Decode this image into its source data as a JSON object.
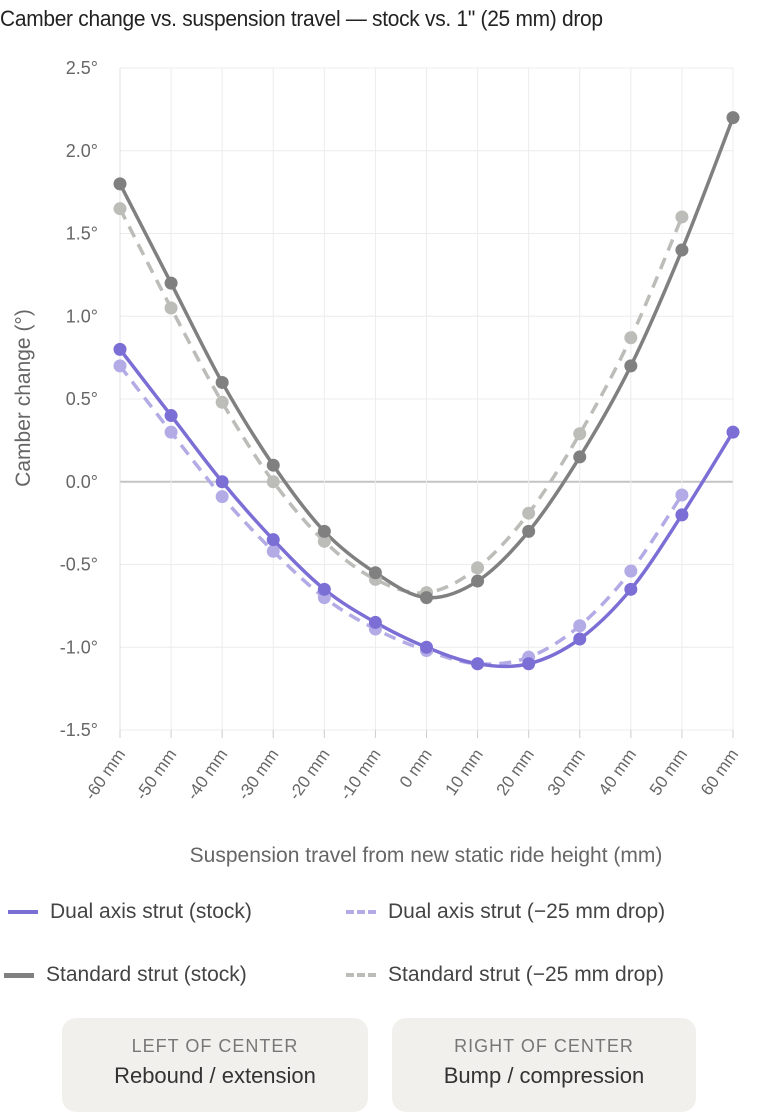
{
  "chart_data": {
    "type": "line",
    "title": "Camber change vs. suspension travel — stock vs. 1\" (25 mm) drop",
    "xlabel": "Suspension travel from new static ride height (mm)",
    "ylabel": "Camber change (°)",
    "categories": [
      "-60 mm",
      "-50 mm",
      "-40 mm",
      "-30 mm",
      "-20 mm",
      "-10 mm",
      "0 mm",
      "10 mm",
      "20 mm",
      "30 mm",
      "40 mm",
      "50 mm",
      "60 mm"
    ],
    "x": [
      -60,
      -50,
      -40,
      -30,
      -20,
      -10,
      0,
      10,
      20,
      30,
      40,
      50,
      60
    ],
    "ylim": [
      -1.5,
      2.5
    ],
    "yticks": [
      "2.5°",
      "2.0°",
      "1.5°",
      "1.0°",
      "0.5°",
      "0.0°",
      "-0.5°",
      "-1.0°",
      "-1.5°"
    ],
    "ytick_values": [
      2.5,
      2.0,
      1.5,
      1.0,
      0.5,
      0.0,
      -0.5,
      -1.0,
      -1.5
    ],
    "grid": true,
    "series": [
      {
        "name": "Dual axis strut (stock)",
        "color": "#7b6fd6",
        "dash": false,
        "values": [
          0.8,
          0.4,
          0.0,
          -0.35,
          -0.65,
          -0.85,
          -1.0,
          -1.1,
          -1.1,
          -0.95,
          -0.65,
          -0.2,
          0.3
        ]
      },
      {
        "name": "Dual axis strut (−25 mm drop)",
        "color": "#b3abe6",
        "dash": true,
        "values": [
          0.7,
          0.3,
          -0.09,
          -0.42,
          -0.7,
          -0.89,
          -1.02,
          -1.1,
          -1.06,
          -0.87,
          -0.54,
          -0.08,
          null
        ]
      },
      {
        "name": "Standard strut (stock)",
        "color": "#808080",
        "dash": false,
        "values": [
          1.8,
          1.2,
          0.6,
          0.1,
          -0.3,
          -0.55,
          -0.7,
          -0.6,
          -0.3,
          0.15,
          0.7,
          1.4,
          2.2
        ]
      },
      {
        "name": "Standard strut (−25 mm drop)",
        "color": "#bcbcb8",
        "dash": true,
        "values": [
          1.65,
          1.05,
          0.48,
          0.0,
          -0.36,
          -0.59,
          -0.67,
          -0.52,
          -0.19,
          0.29,
          0.87,
          1.6,
          null
        ]
      }
    ],
    "legend_position": "bottom"
  },
  "notes": {
    "left": {
      "sub": "LEFT OF CENTER",
      "main": "Rebound / extension"
    },
    "right": {
      "sub": "RIGHT OF CENTER",
      "main": "Bump / compression"
    }
  }
}
